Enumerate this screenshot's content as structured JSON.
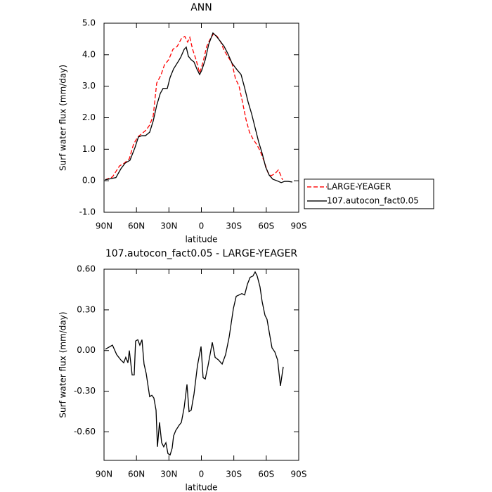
{
  "chart_data": [
    {
      "type": "line",
      "title": "ANN",
      "xlabel": "latitude",
      "ylabel": "Surf water flux (mm/day)",
      "xlim": [
        90,
        -90
      ],
      "xticks": [
        {
          "value": 90,
          "label": "90N"
        },
        {
          "value": 60,
          "label": "60N"
        },
        {
          "value": 30,
          "label": "30N"
        },
        0,
        {
          "value": -30,
          "label": "30S"
        },
        {
          "value": -60,
          "label": "60S"
        },
        {
          "value": -90,
          "label": "90S"
        }
      ],
      "ylim": [
        -1,
        5
      ],
      "yticks": [
        {
          "value": -1,
          "label": "-1.0"
        },
        {
          "value": 0,
          "label": "0.0"
        },
        {
          "value": 1,
          "label": "1.0"
        },
        {
          "value": 2,
          "label": "2.0"
        },
        {
          "value": 3,
          "label": "3.0"
        },
        {
          "value": 4,
          "label": "4.0"
        },
        {
          "value": 5,
          "label": "5.0"
        }
      ],
      "legend": "right",
      "series": [
        {
          "name": "LARGE-YEAGER",
          "color": "#ff0000",
          "linestyle": "dashed",
          "x": [
            89,
            82.2,
            75.7,
            71.2,
            66.6,
            62.7,
            58.8,
            54.9,
            51,
            47.8,
            44.5,
            41.3,
            37.4,
            34.1,
            30.2,
            26.3,
            22.4,
            18.5,
            15.3,
            12.7,
            10.7,
            8.1,
            4.9,
            1.6,
            -1.6,
            -4.9,
            -8.1,
            -11.4,
            -14.6,
            -17.9,
            -21.1,
            -24.4,
            -28.3,
            -31.5,
            -34.8,
            -38,
            -41.3,
            -44.5,
            -47.8,
            -51,
            -54.2,
            -58.1,
            -61.4,
            -64.6,
            -67.9,
            -71.1,
            -73.1,
            -75
          ],
          "values": [
            0.03,
            0.12,
            0.47,
            0.56,
            0.7,
            1.16,
            1.39,
            1.5,
            1.61,
            1.77,
            2.06,
            3.1,
            3.35,
            3.68,
            3.84,
            4.17,
            4.26,
            4.51,
            4.58,
            4.4,
            4.55,
            4.17,
            3.84,
            3.42,
            3.77,
            4.26,
            4.49,
            4.67,
            4.58,
            4.4,
            4.13,
            3.95,
            3.73,
            3.24,
            3.01,
            2.5,
            1.94,
            1.54,
            1.32,
            1.16,
            0.96,
            0.61,
            0.27,
            0.16,
            0.22,
            0.34,
            0.2,
            0.03
          ]
        },
        {
          "name": "107.autocon_fact0.05",
          "color": "#000000",
          "linestyle": "solid",
          "x": [
            89,
            79,
            74.4,
            70.5,
            66,
            61.4,
            58.2,
            54.9,
            51.7,
            47.8,
            44.5,
            41.3,
            38,
            35.4,
            31.5,
            28.9,
            25.7,
            22.4,
            19.2,
            15.9,
            14,
            12,
            9.4,
            6.8,
            4.2,
            1.6,
            -0.3,
            -3.6,
            -6.8,
            -10.7,
            -14,
            -17.2,
            -21.1,
            -24.4,
            -28.3,
            -32.8,
            -36.7,
            -40,
            -43.2,
            -46.5,
            -49.7,
            -53,
            -56.2,
            -59.5,
            -62.7,
            -66,
            -69.9,
            -73.8,
            -77,
            -80.2,
            -84.1
          ],
          "values": [
            0.03,
            0.1,
            0.38,
            0.56,
            0.65,
            1.05,
            1.39,
            1.43,
            1.43,
            1.54,
            1.9,
            2.39,
            2.77,
            2.93,
            2.93,
            3.28,
            3.55,
            3.73,
            3.91,
            4.17,
            4.24,
            3.95,
            3.84,
            3.77,
            3.55,
            3.37,
            3.5,
            3.84,
            4.33,
            4.69,
            4.58,
            4.44,
            4.26,
            4.04,
            3.73,
            3.53,
            3.37,
            2.95,
            2.5,
            2.12,
            1.68,
            1.23,
            0.87,
            0.43,
            0.18,
            0.05,
            0.0,
            -0.06,
            -0.02,
            -0.02,
            -0.04
          ]
        }
      ]
    },
    {
      "type": "line",
      "title": "107.autocon_fact0.05 - LARGE-YEAGER",
      "xlabel": "latitude",
      "ylabel": "Surf water flux (mm/day)",
      "xlim": [
        90,
        -90
      ],
      "xticks": [
        {
          "value": 90,
          "label": "90N"
        },
        {
          "value": 60,
          "label": "60N"
        },
        {
          "value": 30,
          "label": "30N"
        },
        0,
        {
          "value": -30,
          "label": "30S"
        },
        {
          "value": -60,
          "label": "60S"
        },
        {
          "value": -90,
          "label": "90S"
        }
      ],
      "ylim": [
        -0.81,
        0.6
      ],
      "yticks": [
        {
          "value": -0.6,
          "label": "-0.60"
        },
        {
          "value": -0.3,
          "label": "-0.30"
        },
        {
          "value": 0,
          "label": "0.00"
        },
        {
          "value": 0.3,
          "label": "0.30"
        },
        {
          "value": 0.6,
          "label": "0.60"
        }
      ],
      "series": [
        {
          "color": "#000000",
          "linestyle": "solid",
          "x": [
            88.7,
            82.2,
            78.3,
            74.4,
            71.8,
            69.9,
            67.9,
            66.6,
            65.3,
            64.0,
            62.1,
            60.8,
            58.8,
            56.9,
            54.9,
            53.0,
            51.0,
            47.8,
            45.8,
            43.9,
            41.9,
            40.6,
            38.7,
            36.7,
            34.8,
            32.8,
            30.9,
            28.9,
            27.0,
            25.7,
            23.7,
            20.5,
            18.5,
            15.9,
            13.3,
            11.4,
            9.4,
            6.8,
            3.6,
            0.3,
            -1.6,
            -3.6,
            -6.2,
            -10.1,
            -12.7,
            -15.9,
            -19.2,
            -22.4,
            -25.7,
            -29.6,
            -32.2,
            -34.8,
            -37.4,
            -40,
            -42.6,
            -45.1,
            -47.7,
            -49.7,
            -51.6,
            -54.2,
            -56.2,
            -58.8,
            -60.7,
            -63.3,
            -65.3,
            -67.9,
            -70.5,
            -73.1,
            -75.7
          ],
          "values": [
            0.01,
            0.04,
            -0.03,
            -0.07,
            -0.09,
            -0.05,
            -0.09,
            0.0,
            -0.09,
            -0.18,
            -0.18,
            0.07,
            0.08,
            0.04,
            0.08,
            -0.1,
            -0.17,
            -0.34,
            -0.33,
            -0.35,
            -0.44,
            -0.71,
            -0.53,
            -0.68,
            -0.71,
            -0.68,
            -0.76,
            -0.77,
            -0.72,
            -0.63,
            -0.59,
            -0.55,
            -0.53,
            -0.42,
            -0.25,
            -0.45,
            -0.44,
            -0.32,
            -0.11,
            0.03,
            -0.2,
            -0.21,
            -0.11,
            0.06,
            -0.05,
            -0.07,
            -0.1,
            -0.03,
            0.1,
            0.31,
            0.4,
            0.41,
            0.42,
            0.41,
            0.49,
            0.54,
            0.55,
            0.58,
            0.55,
            0.47,
            0.36,
            0.26,
            0.23,
            0.11,
            0.02,
            -0.01,
            -0.07,
            -0.26,
            -0.12
          ]
        }
      ]
    }
  ]
}
